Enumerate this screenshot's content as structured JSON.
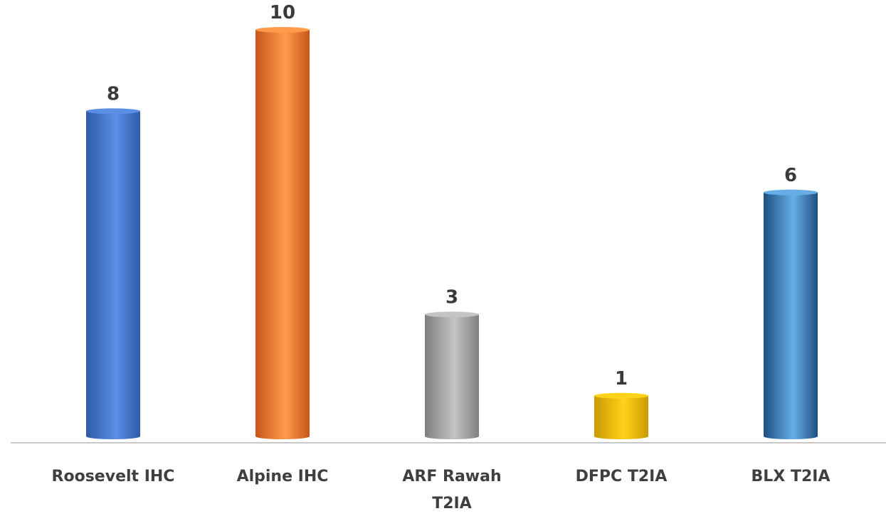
{
  "chart_data": {
    "type": "bar",
    "title": "",
    "xlabel": "",
    "ylabel": "",
    "categories": [
      [
        "Roosevelt IHC"
      ],
      [
        "Alpine IHC"
      ],
      [
        "ARF Rawah",
        "T2IA"
      ],
      [
        "DFPC T2IA"
      ],
      [
        "BLX T2IA"
      ]
    ],
    "values": [
      8,
      10,
      3,
      1,
      6
    ],
    "data_labels": [
      "8",
      "10",
      "3",
      "1",
      "6"
    ],
    "ylim": [
      0,
      10
    ],
    "grid": false,
    "legend": "none",
    "bar_colors": [
      {
        "dark": "#2f5aa8",
        "light": "#5b8fe6"
      },
      {
        "dark": "#c8561a",
        "light": "#ff9b4a"
      },
      {
        "dark": "#7f7f7f",
        "light": "#c4c4c4"
      },
      {
        "dark": "#c99a00",
        "light": "#ffd21a"
      },
      {
        "dark": "#1e4f80",
        "light": "#67aee8"
      }
    ],
    "axis_color": "#c8c8c8"
  }
}
